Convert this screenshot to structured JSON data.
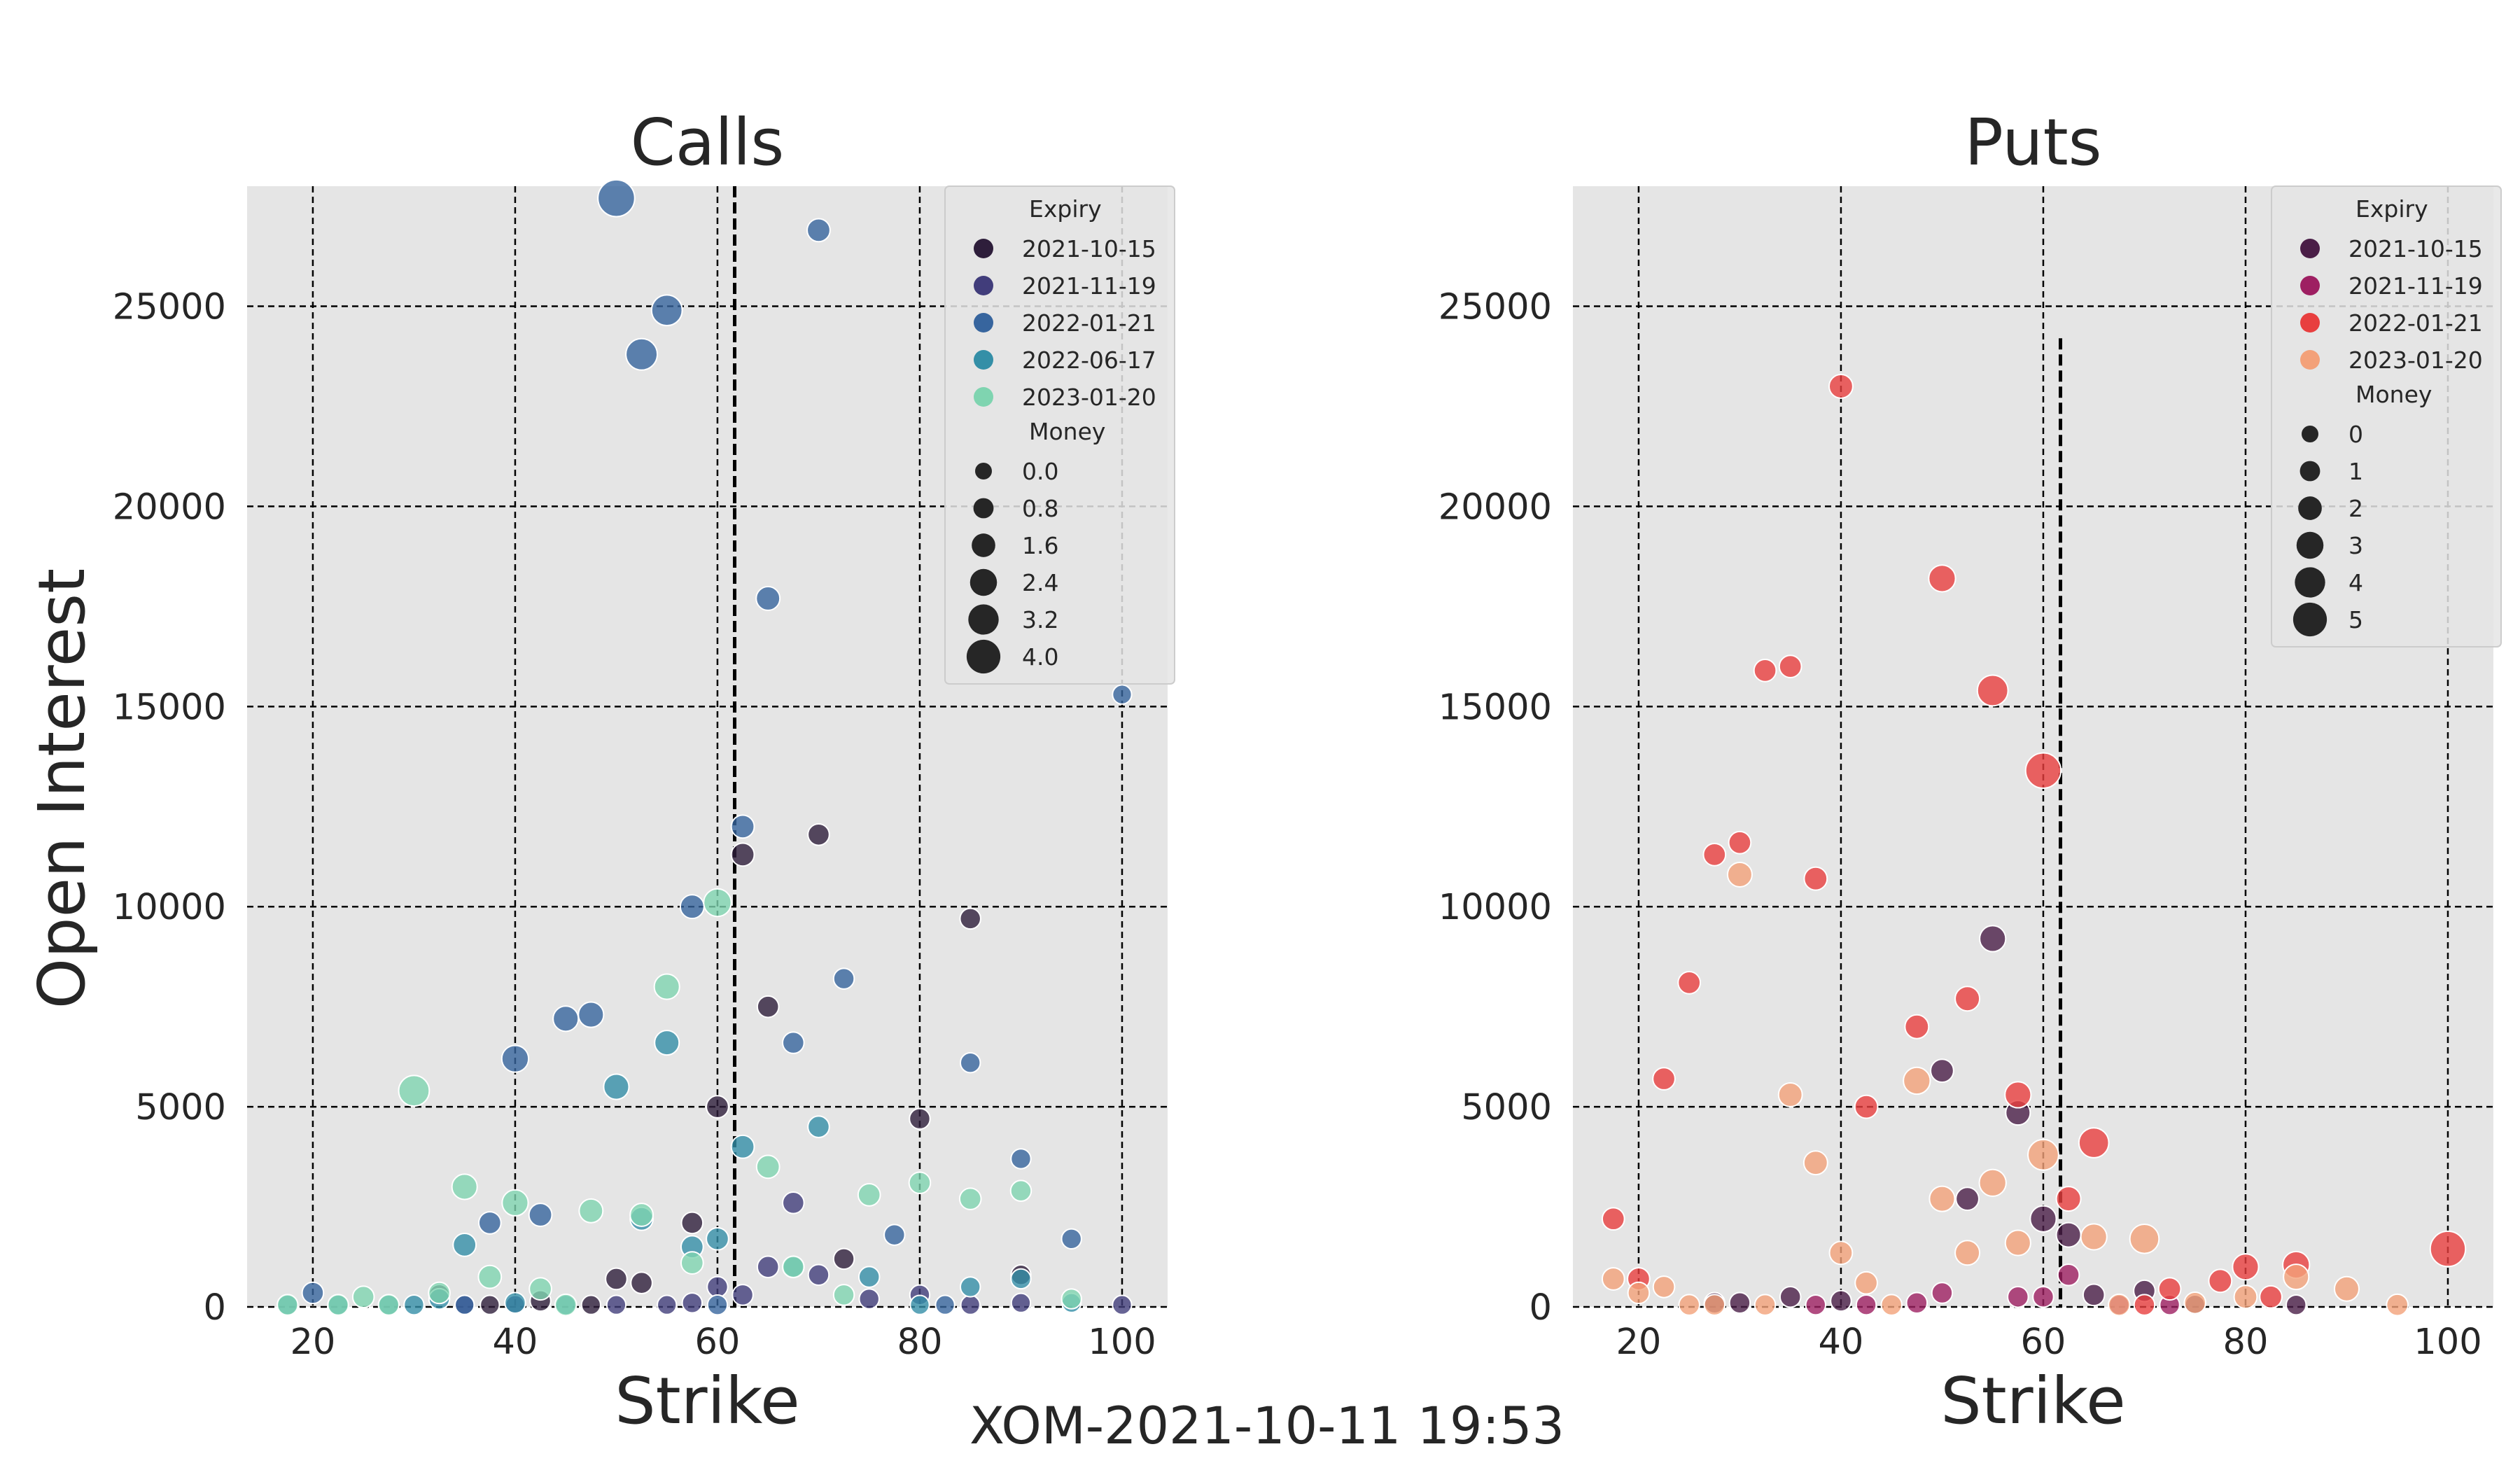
{
  "suptitle": "XOM-2021-10-11 19:53",
  "chart_data": [
    {
      "type": "scatter",
      "title": "Calls",
      "xlabel": "Strike",
      "ylabel": "Open Interest",
      "xlim": [
        13.5,
        104.5
      ],
      "ylim": [
        0,
        28000
      ],
      "xticks": [
        "20",
        "40",
        "60",
        "80",
        "100"
      ],
      "xtick_values": [
        20,
        40,
        60,
        80,
        100
      ],
      "yticks": [
        "0",
        "5000",
        "10000",
        "15000",
        "20000",
        "25000"
      ],
      "ytick_values": [
        0,
        5000,
        10000,
        15000,
        20000,
        25000
      ],
      "grid": true,
      "vline_x": 61.7,
      "vline_top": 28000,
      "legend": {
        "position": "top-right",
        "hue_title": "Expiry",
        "size_title": "Money",
        "size_labels": [
          "0.0",
          "0.8",
          "1.6",
          "2.4",
          "3.2",
          "4.0"
        ],
        "size_values": [
          0.0,
          0.8,
          1.6,
          2.4,
          3.2,
          4.0
        ],
        "size_max": 4.0
      },
      "series": [
        {
          "name": "2021-10-15",
          "color": "#2e1e3b",
          "points": [
            [
              32.5,
              300,
              0.5
            ],
            [
              37.5,
              50,
              0.3
            ],
            [
              42.5,
              150,
              0.5
            ],
            [
              47.5,
              50,
              0.3
            ],
            [
              50,
              700,
              0.6
            ],
            [
              52.5,
              600,
              0.6
            ],
            [
              57.5,
              2100,
              0.6
            ],
            [
              60,
              5000,
              0.7
            ],
            [
              62.5,
              11300,
              0.8
            ],
            [
              65,
              7500,
              0.6
            ],
            [
              70,
              11800,
              0.6
            ],
            [
              72.5,
              1200,
              0.5
            ],
            [
              80,
              4700,
              0.5
            ],
            [
              85,
              9700,
              0.5
            ],
            [
              90,
              800,
              0.4
            ]
          ]
        },
        {
          "name": "2021-11-19",
          "color": "#413d7b",
          "points": [
            [
              35,
              50,
              0.3
            ],
            [
              40,
              50,
              0.3
            ],
            [
              50,
              50,
              0.3
            ],
            [
              55,
              50,
              0.3
            ],
            [
              57.5,
              100,
              0.4
            ],
            [
              60,
              500,
              0.5
            ],
            [
              62.5,
              300,
              0.5
            ],
            [
              65,
              1000,
              0.6
            ],
            [
              67.5,
              2600,
              0.6
            ],
            [
              70,
              800,
              0.5
            ],
            [
              75,
              200,
              0.4
            ],
            [
              80,
              300,
              0.4
            ],
            [
              85,
              50,
              0.3
            ],
            [
              90,
              100,
              0.3
            ],
            [
              100,
              50,
              0.3
            ]
          ]
        },
        {
          "name": "2022-01-21",
          "color": "#37659e",
          "points": [
            [
              20,
              350,
              0.6
            ],
            [
              35,
              50,
              0.3
            ],
            [
              37.5,
              2100,
              0.7
            ],
            [
              40,
              6200,
              1.3
            ],
            [
              42.5,
              2300,
              0.8
            ],
            [
              45,
              7200,
              1.1
            ],
            [
              47.5,
              7300,
              1.1
            ],
            [
              50,
              27700,
              2.6
            ],
            [
              52.5,
              23800,
              1.9
            ],
            [
              55,
              24900,
              1.8
            ],
            [
              57.5,
              10000,
              0.9
            ],
            [
              60,
              50,
              0.4
            ],
            [
              62.5,
              12000,
              0.8
            ],
            [
              65,
              17700,
              0.9
            ],
            [
              67.5,
              6600,
              0.6
            ],
            [
              70,
              26900,
              0.8
            ],
            [
              72.5,
              8200,
              0.5
            ],
            [
              77.5,
              1800,
              0.5
            ],
            [
              82.5,
              50,
              0.3
            ],
            [
              85,
              6100,
              0.4
            ],
            [
              90,
              3700,
              0.4
            ],
            [
              95,
              1700,
              0.4
            ],
            [
              100,
              15300,
              0.3
            ]
          ]
        },
        {
          "name": "2022-06-17",
          "color": "#348fa7",
          "points": [
            [
              17.5,
              50,
              0.4
            ],
            [
              22.5,
              50,
              0.4
            ],
            [
              27.5,
              50,
              0.4
            ],
            [
              30,
              50,
              0.4
            ],
            [
              32.5,
              200,
              0.5
            ],
            [
              35,
              1550,
              0.8
            ],
            [
              40,
              100,
              0.5
            ],
            [
              45,
              50,
              0.4
            ],
            [
              50,
              5500,
              1.1
            ],
            [
              52.5,
              2200,
              0.8
            ],
            [
              55,
              6600,
              1.0
            ],
            [
              57.5,
              1500,
              0.7
            ],
            [
              60,
              1700,
              0.7
            ],
            [
              62.5,
              4000,
              0.8
            ],
            [
              67.5,
              1000,
              0.5
            ],
            [
              70,
              4500,
              0.6
            ],
            [
              75,
              750,
              0.5
            ],
            [
              80,
              50,
              0.3
            ],
            [
              85,
              500,
              0.4
            ],
            [
              90,
              700,
              0.4
            ],
            [
              95,
              100,
              0.3
            ]
          ]
        },
        {
          "name": "2023-01-20",
          "color": "#7fd4b0",
          "points": [
            [
              17.5,
              50,
              0.5
            ],
            [
              22.5,
              50,
              0.5
            ],
            [
              25,
              250,
              0.6
            ],
            [
              27.5,
              50,
              0.5
            ],
            [
              30,
              5400,
              1.8
            ],
            [
              32.5,
              350,
              0.6
            ],
            [
              35,
              3000,
              1.1
            ],
            [
              37.5,
              750,
              0.8
            ],
            [
              40,
              2600,
              1.2
            ],
            [
              42.5,
              450,
              0.7
            ],
            [
              45,
              50,
              0.6
            ],
            [
              47.5,
              2400,
              0.9
            ],
            [
              52.5,
              2300,
              0.8
            ],
            [
              55,
              8000,
              1.1
            ],
            [
              57.5,
              1100,
              0.7
            ],
            [
              60,
              10100,
              1.4
            ],
            [
              65,
              3500,
              0.8
            ],
            [
              67.5,
              1000,
              0.6
            ],
            [
              72.5,
              300,
              0.5
            ],
            [
              75,
              2800,
              0.7
            ],
            [
              80,
              3100,
              0.6
            ],
            [
              85,
              2700,
              0.6
            ],
            [
              90,
              2900,
              0.5
            ],
            [
              95,
              200,
              0.4
            ]
          ]
        }
      ]
    },
    {
      "type": "scatter",
      "title": "Puts",
      "xlabel": "Strike",
      "ylabel": "",
      "xlim": [
        13.5,
        104.5
      ],
      "ylim": [
        0,
        28000
      ],
      "xticks": [
        "20",
        "40",
        "60",
        "80",
        "100"
      ],
      "xtick_values": [
        20,
        40,
        60,
        80,
        100
      ],
      "yticks": [
        "0",
        "5000",
        "10000",
        "15000",
        "20000",
        "25000"
      ],
      "ytick_values": [
        0,
        5000,
        10000,
        15000,
        20000,
        25000
      ],
      "grid": true,
      "vline_x": 61.7,
      "vline_top": 24200,
      "legend": {
        "position": "top-right",
        "hue_title": "Expiry",
        "size_title": "Money",
        "size_labels": [
          "0",
          "1",
          "2",
          "3",
          "4",
          "5"
        ],
        "size_values": [
          0,
          1,
          2,
          3,
          4,
          5
        ],
        "size_max": 5.0
      },
      "series": [
        {
          "name": "2021-10-15",
          "color": "#4a1e47",
          "points": [
            [
              27.5,
              100,
              0.5
            ],
            [
              30,
              100,
              0.5
            ],
            [
              35,
              250,
              0.5
            ],
            [
              40,
              150,
              0.5
            ],
            [
              50,
              5900,
              0.8
            ],
            [
              52.5,
              2700,
              0.8
            ],
            [
              55,
              9200,
              1.2
            ],
            [
              57.5,
              4850,
              1.0
            ],
            [
              60,
              2200,
              1.2
            ],
            [
              62.5,
              1800,
              1.0
            ],
            [
              65,
              300,
              0.6
            ],
            [
              70,
              400,
              0.6
            ],
            [
              75,
              50,
              0.4
            ],
            [
              85,
              50,
              0.4
            ]
          ]
        },
        {
          "name": "2021-11-19",
          "color": "#9e1f62",
          "points": [
            [
              37.5,
              50,
              0.4
            ],
            [
              42.5,
              50,
              0.4
            ],
            [
              47.5,
              100,
              0.5
            ],
            [
              50,
              350,
              0.5
            ],
            [
              57.5,
              250,
              0.5
            ],
            [
              60,
              250,
              0.5
            ],
            [
              62.5,
              800,
              0.6
            ],
            [
              67.5,
              50,
              0.4
            ],
            [
              72.5,
              50,
              0.4
            ]
          ]
        },
        {
          "name": "2022-01-21",
          "color": "#e83f3f",
          "points": [
            [
              17.5,
              2200,
              0.7
            ],
            [
              20,
              700,
              0.7
            ],
            [
              22.5,
              5700,
              0.7
            ],
            [
              25,
              8100,
              0.7
            ],
            [
              27.5,
              11300,
              0.7
            ],
            [
              30,
              11600,
              0.7
            ],
            [
              32.5,
              15900,
              0.7
            ],
            [
              35,
              16000,
              0.7
            ],
            [
              37.5,
              10700,
              0.8
            ],
            [
              40,
              23000,
              0.9
            ],
            [
              42.5,
              5000,
              0.8
            ],
            [
              47.5,
              7000,
              0.9
            ],
            [
              50,
              18200,
              1.3
            ],
            [
              52.5,
              7700,
              1.0
            ],
            [
              55,
              15400,
              1.8
            ],
            [
              57.5,
              5300,
              1.2
            ],
            [
              60,
              13400,
              2.4
            ],
            [
              62.5,
              2700,
              1.0
            ],
            [
              65,
              4100,
              1.7
            ],
            [
              70,
              50,
              0.5
            ],
            [
              72.5,
              450,
              0.7
            ],
            [
              77.5,
              650,
              0.8
            ],
            [
              80,
              1000,
              1.2
            ],
            [
              82.5,
              250,
              0.7
            ],
            [
              85,
              1050,
              1.3
            ],
            [
              100,
              1450,
              2.4
            ]
          ]
        },
        {
          "name": "2023-01-20",
          "color": "#f3a179",
          "points": [
            [
              17.5,
              700,
              0.7
            ],
            [
              20,
              350,
              0.6
            ],
            [
              22.5,
              500,
              0.6
            ],
            [
              25,
              50,
              0.5
            ],
            [
              27.5,
              50,
              0.5
            ],
            [
              30,
              10800,
              1.0
            ],
            [
              32.5,
              50,
              0.5
            ],
            [
              35,
              5300,
              0.9
            ],
            [
              37.5,
              3600,
              0.9
            ],
            [
              40,
              1350,
              0.8
            ],
            [
              42.5,
              600,
              0.7
            ],
            [
              45,
              50,
              0.5
            ],
            [
              47.5,
              5650,
              1.3
            ],
            [
              50,
              2700,
              1.1
            ],
            [
              52.5,
              1350,
              1.0
            ],
            [
              55,
              3100,
              1.3
            ],
            [
              57.5,
              1600,
              1.1
            ],
            [
              60,
              3800,
              1.8
            ],
            [
              65,
              1750,
              1.2
            ],
            [
              67.5,
              50,
              0.6
            ],
            [
              70,
              1700,
              1.6
            ],
            [
              75,
              100,
              0.6
            ],
            [
              80,
              250,
              0.8
            ],
            [
              85,
              750,
              1.1
            ],
            [
              90,
              450,
              1.0
            ],
            [
              95,
              50,
              0.6
            ]
          ]
        }
      ]
    }
  ]
}
